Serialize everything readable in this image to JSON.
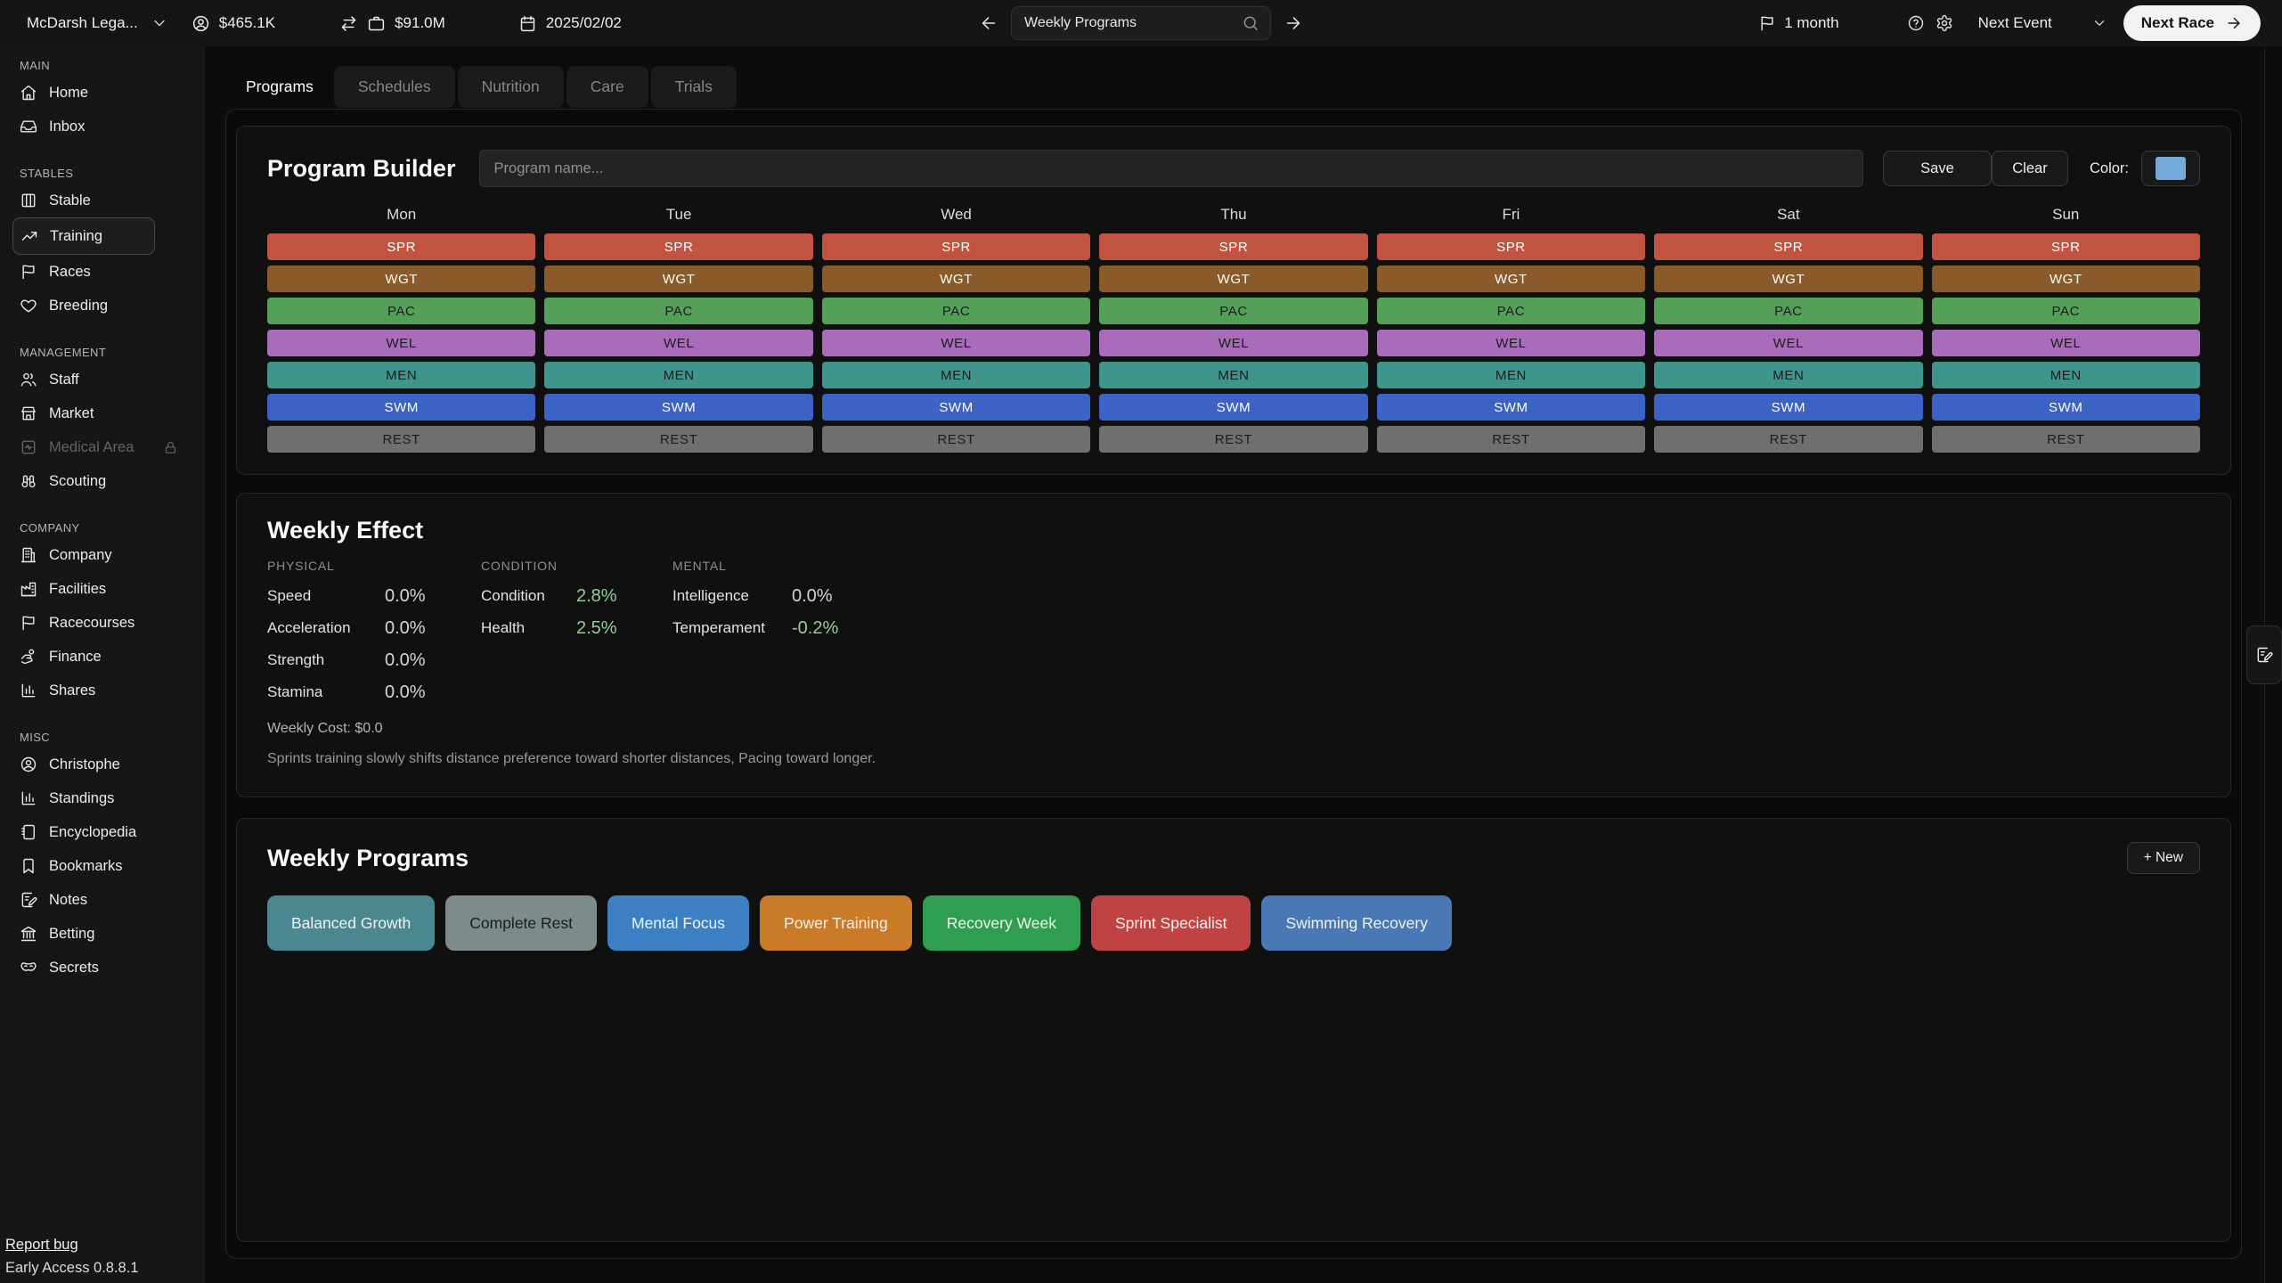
{
  "topbar": {
    "stable_name": "McDarsh Lega...",
    "cash": "$465.1K",
    "company_value": "$91.0M",
    "date": "2025/02/02",
    "search_value": "Weekly Programs",
    "time_left": "1 month",
    "next_event_label": "Next Event",
    "next_race_label": "Next Race"
  },
  "sidebar": {
    "sections": [
      {
        "label": "MAIN",
        "items": [
          {
            "label": "Home",
            "icon": "home"
          },
          {
            "label": "Inbox",
            "icon": "inbox"
          }
        ]
      },
      {
        "label": "STABLES",
        "items": [
          {
            "label": "Stable",
            "icon": "stable"
          },
          {
            "label": "Training",
            "icon": "training",
            "active": true
          },
          {
            "label": "Races",
            "icon": "flag"
          },
          {
            "label": "Breeding",
            "icon": "heart"
          }
        ]
      },
      {
        "label": "MANAGEMENT",
        "items": [
          {
            "label": "Staff",
            "icon": "staff"
          },
          {
            "label": "Market",
            "icon": "market"
          },
          {
            "label": "Medical Area",
            "icon": "medical",
            "locked": true
          },
          {
            "label": "Scouting",
            "icon": "scouting"
          }
        ]
      },
      {
        "label": "COMPANY",
        "items": [
          {
            "label": "Company",
            "icon": "company"
          },
          {
            "label": "Facilities",
            "icon": "facilities"
          },
          {
            "label": "Racecourses",
            "icon": "flag"
          },
          {
            "label": "Finance",
            "icon": "finance"
          },
          {
            "label": "Shares",
            "icon": "chart"
          }
        ]
      },
      {
        "label": "MISC",
        "items": [
          {
            "label": "Christophe",
            "icon": "user-circle"
          },
          {
            "label": "Standings",
            "icon": "chart"
          },
          {
            "label": "Encyclopedia",
            "icon": "book"
          },
          {
            "label": "Bookmarks",
            "icon": "bookmark"
          },
          {
            "label": "Notes",
            "icon": "notes"
          },
          {
            "label": "Betting",
            "icon": "bank"
          },
          {
            "label": "Secrets",
            "icon": "mask"
          }
        ]
      }
    ],
    "footer": {
      "report_bug": "Report bug",
      "version": "Early Access 0.8.8.1"
    }
  },
  "tabs": [
    {
      "label": "Programs",
      "active": true
    },
    {
      "label": "Schedules"
    },
    {
      "label": "Nutrition"
    },
    {
      "label": "Care"
    },
    {
      "label": "Trials"
    }
  ],
  "program_builder": {
    "title": "Program Builder",
    "name_placeholder": "Program name...",
    "save_label": "Save",
    "clear_label": "Clear",
    "color_label": "Color:",
    "color_value": "#74a9da",
    "days": [
      "Mon",
      "Tue",
      "Wed",
      "Thu",
      "Fri",
      "Sat",
      "Sun"
    ],
    "slots": [
      {
        "code": "SPR",
        "bg": "#c15440",
        "text": "#ffffff"
      },
      {
        "code": "WGT",
        "bg": "#8a5a2a",
        "text": "#ffffff"
      },
      {
        "code": "PAC",
        "bg": "#55a058",
        "text": "#1c1c1c"
      },
      {
        "code": "WEL",
        "bg": "#a96cbb",
        "text": "#1c1c1c"
      },
      {
        "code": "MEN",
        "bg": "#3f958c",
        "text": "#1c1c1c"
      },
      {
        "code": "SWM",
        "bg": "#3b62c4",
        "text": "#ffffff"
      },
      {
        "code": "REST",
        "bg": "#6f6f6f",
        "text": "#1c1c1c"
      }
    ]
  },
  "weekly_effect": {
    "title": "Weekly Effect",
    "groups": [
      {
        "label": "PHYSICAL",
        "stats": [
          {
            "name": "Speed",
            "value": "0.0%",
            "positive": false
          },
          {
            "name": "Acceleration",
            "value": "0.0%",
            "positive": false
          },
          {
            "name": "Strength",
            "value": "0.0%",
            "positive": false
          },
          {
            "name": "Stamina",
            "value": "0.0%",
            "positive": false
          }
        ]
      },
      {
        "label": "CONDITION",
        "stats": [
          {
            "name": "Condition",
            "value": "2.8%",
            "positive": true
          },
          {
            "name": "Health",
            "value": "2.5%",
            "positive": true
          }
        ]
      },
      {
        "label": "MENTAL",
        "stats": [
          {
            "name": "Intelligence",
            "value": "0.0%",
            "positive": false
          },
          {
            "name": "Temperament",
            "value": "-0.2%",
            "positive": true
          }
        ]
      }
    ],
    "weekly_cost": "Weekly Cost: $0.0",
    "note": "Sprints training slowly shifts distance preference toward shorter distances, Pacing toward longer."
  },
  "weekly_programs": {
    "title": "Weekly Programs",
    "new_label": "+ New",
    "items": [
      {
        "name": "Balanced Growth",
        "bg": "#4a8791",
        "text": "#f2f2f2"
      },
      {
        "name": "Complete Rest",
        "bg": "#7e8b8b",
        "text": "#1d1d1d"
      },
      {
        "name": "Mental Focus",
        "bg": "#3c7fc3",
        "text": "#f2f2f2"
      },
      {
        "name": "Power Training",
        "bg": "#c97b27",
        "text": "#f2f2f2"
      },
      {
        "name": "Recovery Week",
        "bg": "#2f9e51",
        "text": "#f2f2f2"
      },
      {
        "name": "Sprint Specialist",
        "bg": "#c04343",
        "text": "#f2f2f2"
      },
      {
        "name": "Swimming Recovery",
        "bg": "#4a78b4",
        "text": "#f2f2f2"
      }
    ]
  }
}
